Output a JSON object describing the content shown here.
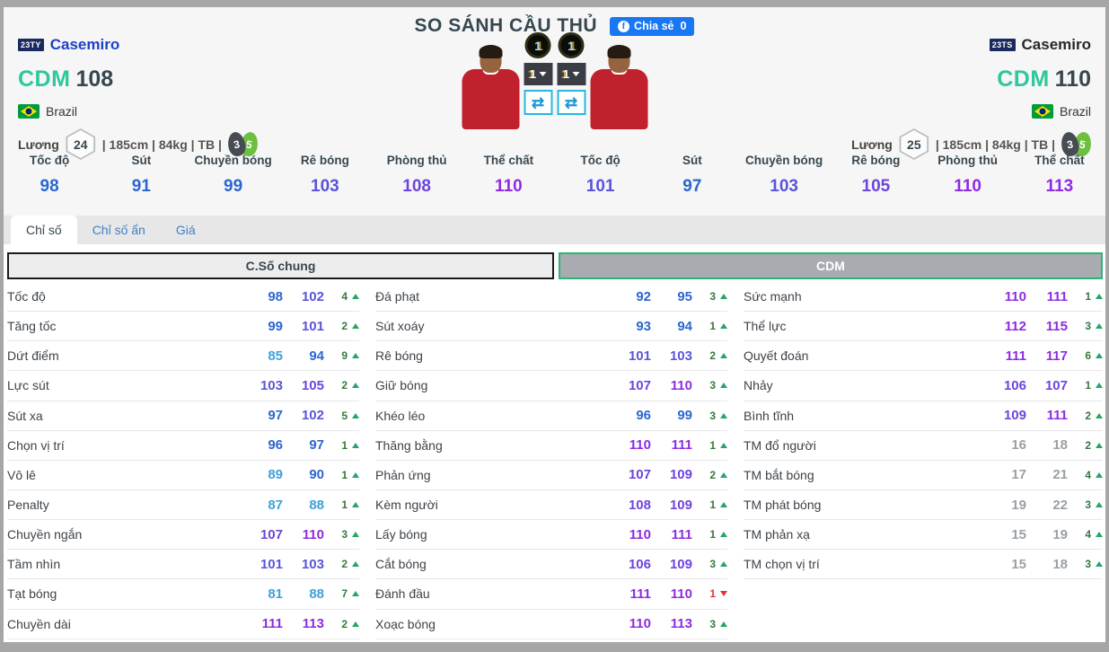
{
  "page": {
    "title": "SO SÁNH CẦU THỦ"
  },
  "share": {
    "label": "Chia sẻ",
    "count": "0"
  },
  "players": {
    "left": {
      "badge": "23TY",
      "name": "Casemiro",
      "name_color": "#1d41c8",
      "position": "CDM",
      "ovr": "108",
      "nation": "Brazil",
      "salary_label": "Lương",
      "salary": "24",
      "details": "| 185cm | 84kg | TB |",
      "weak_foot": "3",
      "strong_foot": "5"
    },
    "right": {
      "badge": "23TS",
      "name": "Casemiro",
      "name_color": "#24282c",
      "position": "CDM",
      "ovr": "110",
      "nation": "Brazil",
      "salary_label": "Lương",
      "salary": "25",
      "details": "| 185cm | 84kg | TB |",
      "weak_foot": "3",
      "strong_foot": "5"
    }
  },
  "controls": {
    "left_level": "1",
    "right_level": "1",
    "left_select": "1",
    "right_select": "1",
    "swap_icon": "⇄"
  },
  "main_stats": {
    "labels": [
      "Tốc độ",
      "Sút",
      "Chuyền bóng",
      "Rê bóng",
      "Phòng thủ",
      "Thể chất"
    ],
    "left_values": [
      98,
      91,
      99,
      103,
      108,
      110
    ],
    "right_values": [
      101,
      97,
      103,
      105,
      110,
      113
    ]
  },
  "tabs": [
    {
      "label": "Chỉ số",
      "active": true
    },
    {
      "label": "Chỉ số ẩn",
      "active": false
    },
    {
      "label": "Giá",
      "active": false
    }
  ],
  "section_headers": {
    "general": "C.Số chung",
    "position": "CDM"
  },
  "stat_columns": [
    [
      {
        "label": "Tốc độ",
        "v1": 98,
        "v2": 102,
        "diff": 4,
        "dir": "up"
      },
      {
        "label": "Tăng tốc",
        "v1": 99,
        "v2": 101,
        "diff": 2,
        "dir": "up"
      },
      {
        "label": "Dứt điểm",
        "v1": 85,
        "v2": 94,
        "diff": 9,
        "dir": "up"
      },
      {
        "label": "Lực sút",
        "v1": 103,
        "v2": 105,
        "diff": 2,
        "dir": "up"
      },
      {
        "label": "Sút xa",
        "v1": 97,
        "v2": 102,
        "diff": 5,
        "dir": "up"
      },
      {
        "label": "Chọn vị trí",
        "v1": 96,
        "v2": 97,
        "diff": 1,
        "dir": "up"
      },
      {
        "label": "Vô lê",
        "v1": 89,
        "v2": 90,
        "diff": 1,
        "dir": "up"
      },
      {
        "label": "Penalty",
        "v1": 87,
        "v2": 88,
        "diff": 1,
        "dir": "up"
      },
      {
        "label": "Chuyền ngắn",
        "v1": 107,
        "v2": 110,
        "diff": 3,
        "dir": "up"
      },
      {
        "label": "Tầm nhìn",
        "v1": 101,
        "v2": 103,
        "diff": 2,
        "dir": "up"
      },
      {
        "label": "Tạt bóng",
        "v1": 81,
        "v2": 88,
        "diff": 7,
        "dir": "up"
      },
      {
        "label": "Chuyền dài",
        "v1": 111,
        "v2": 113,
        "diff": 2,
        "dir": "up"
      }
    ],
    [
      {
        "label": "Đá phạt",
        "v1": 92,
        "v2": 95,
        "diff": 3,
        "dir": "up"
      },
      {
        "label": "Sút xoáy",
        "v1": 93,
        "v2": 94,
        "diff": 1,
        "dir": "up"
      },
      {
        "label": "Rê bóng",
        "v1": 101,
        "v2": 103,
        "diff": 2,
        "dir": "up"
      },
      {
        "label": "Giữ bóng",
        "v1": 107,
        "v2": 110,
        "diff": 3,
        "dir": "up"
      },
      {
        "label": "Khéo léo",
        "v1": 96,
        "v2": 99,
        "diff": 3,
        "dir": "up"
      },
      {
        "label": "Thăng bằng",
        "v1": 110,
        "v2": 111,
        "diff": 1,
        "dir": "up"
      },
      {
        "label": "Phản ứng",
        "v1": 107,
        "v2": 109,
        "diff": 2,
        "dir": "up"
      },
      {
        "label": "Kèm người",
        "v1": 108,
        "v2": 109,
        "diff": 1,
        "dir": "up"
      },
      {
        "label": "Lấy bóng",
        "v1": 110,
        "v2": 111,
        "diff": 1,
        "dir": "up"
      },
      {
        "label": "Cắt bóng",
        "v1": 106,
        "v2": 109,
        "diff": 3,
        "dir": "up"
      },
      {
        "label": "Đánh đầu",
        "v1": 111,
        "v2": 110,
        "diff": 1,
        "dir": "down"
      },
      {
        "label": "Xoạc bóng",
        "v1": 110,
        "v2": 113,
        "diff": 3,
        "dir": "up"
      }
    ],
    [
      {
        "label": "Sức mạnh",
        "v1": 110,
        "v2": 111,
        "diff": 1,
        "dir": "up"
      },
      {
        "label": "Thể lực",
        "v1": 112,
        "v2": 115,
        "diff": 3,
        "dir": "up"
      },
      {
        "label": "Quyết đoán",
        "v1": 111,
        "v2": 117,
        "diff": 6,
        "dir": "up"
      },
      {
        "label": "Nhảy",
        "v1": 106,
        "v2": 107,
        "diff": 1,
        "dir": "up"
      },
      {
        "label": "Bình tĩnh",
        "v1": 109,
        "v2": 111,
        "diff": 2,
        "dir": "up"
      },
      {
        "label": "TM đổ người",
        "v1": 16,
        "v2": 18,
        "diff": 2,
        "dir": "up"
      },
      {
        "label": "TM bắt bóng",
        "v1": 17,
        "v2": 21,
        "diff": 4,
        "dir": "up"
      },
      {
        "label": "TM phát bóng",
        "v1": 19,
        "v2": 22,
        "diff": 3,
        "dir": "up"
      },
      {
        "label": "TM phản xạ",
        "v1": 15,
        "v2": 19,
        "diff": 4,
        "dir": "up"
      },
      {
        "label": "TM chọn vị trí",
        "v1": 15,
        "v2": 18,
        "diff": 3,
        "dir": "up"
      }
    ]
  ],
  "colors": {
    "facebook": "#1877f2",
    "position_green": "#2fc79c",
    "cdm_header_green": "#2bb673",
    "diff_up": "#35793b",
    "diff_up_arrow": "#27a567",
    "diff_down": "#e5342e",
    "value_scale": [
      {
        "min": 110,
        "hex": "#8e2ae2"
      },
      {
        "min": 105,
        "hex": "#6d44df"
      },
      {
        "min": 100,
        "hex": "#5a54da"
      },
      {
        "min": 90,
        "hex": "#2b66cf"
      },
      {
        "min": 80,
        "hex": "#3fa0d9"
      },
      {
        "min": 0,
        "hex": "#9aa0a5"
      }
    ]
  }
}
